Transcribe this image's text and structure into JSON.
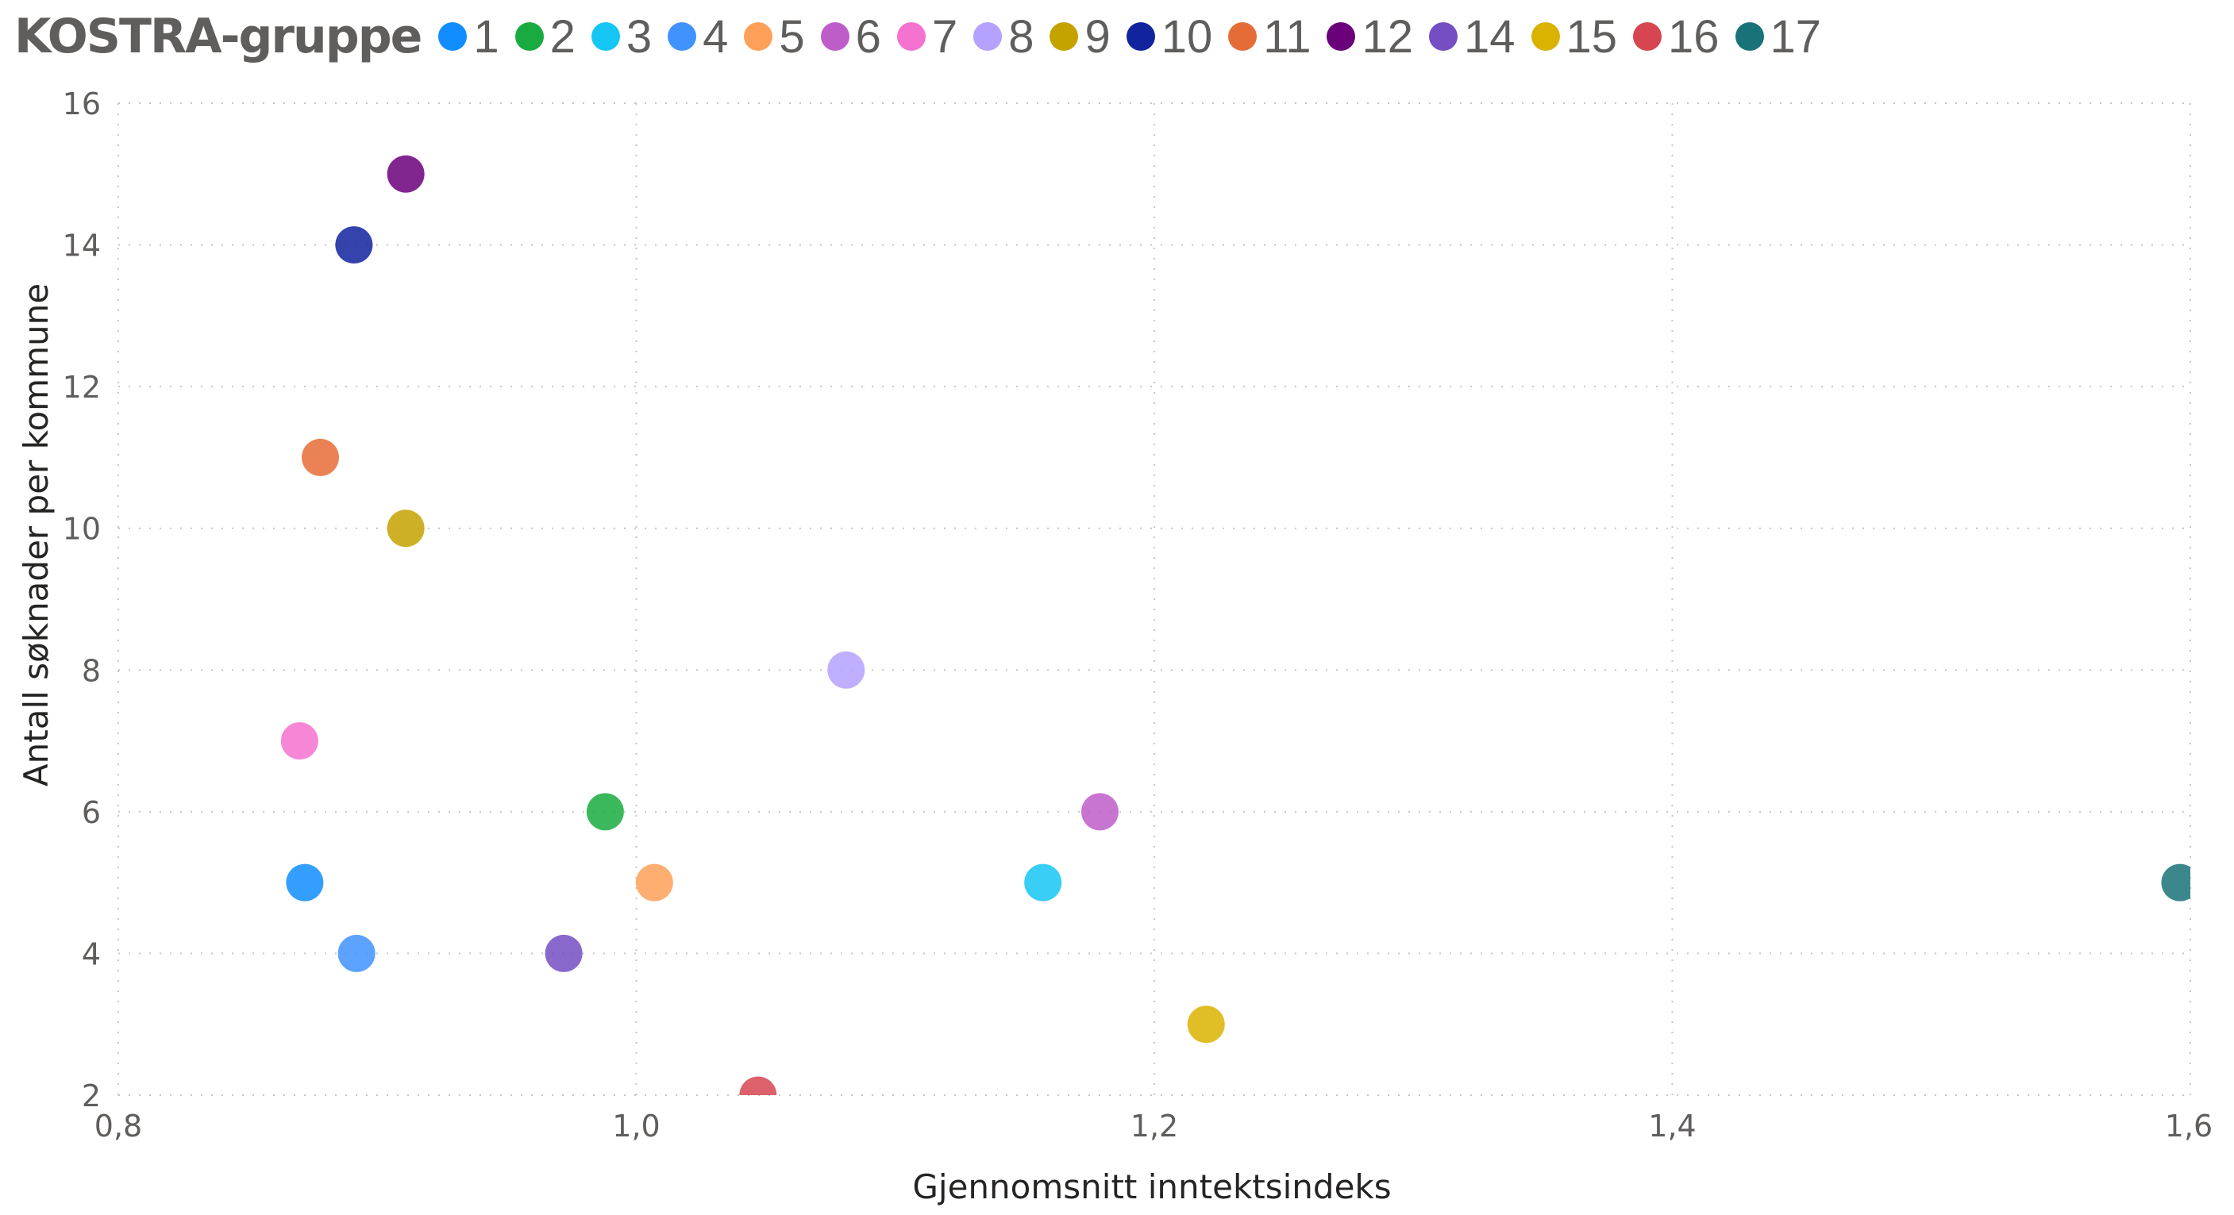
{
  "legend": {
    "title": "KOSTRA-gruppe",
    "items": [
      {
        "label": "1",
        "color": "#118DFF"
      },
      {
        "label": "2",
        "color": "#1AAB40"
      },
      {
        "label": "3",
        "color": "#15C6F4"
      },
      {
        "label": "4",
        "color": "#4092FF"
      },
      {
        "label": "5",
        "color": "#FFA058"
      },
      {
        "label": "6",
        "color": "#BE5DC9"
      },
      {
        "label": "7",
        "color": "#F472D0"
      },
      {
        "label": "8",
        "color": "#B5A1FF"
      },
      {
        "label": "9",
        "color": "#C4A200"
      },
      {
        "label": "10",
        "color": "#12239E"
      },
      {
        "label": "11",
        "color": "#E66C37"
      },
      {
        "label": "12",
        "color": "#6B007B"
      },
      {
        "label": "14",
        "color": "#744EC2"
      },
      {
        "label": "15",
        "color": "#D9B300"
      },
      {
        "label": "16",
        "color": "#D64550"
      },
      {
        "label": "17",
        "color": "#197278"
      }
    ]
  },
  "chart_data": {
    "type": "scatter",
    "title": "",
    "legend_title": "KOSTRA-gruppe",
    "legend_position": "top",
    "xlabel": "Gjennomsnitt inntektsindeks",
    "ylabel": "Antall søknader per kommune",
    "xlim": [
      0.8,
      1.6
    ],
    "ylim": [
      2,
      16
    ],
    "x_ticks": [
      "0,8",
      "1,0",
      "1,2",
      "1,4",
      "1,6"
    ],
    "y_ticks": [
      "2",
      "4",
      "6",
      "8",
      "10",
      "12",
      "14",
      "16"
    ],
    "grid": true,
    "series": [
      {
        "name": "1",
        "x": 0.872,
        "y": 5,
        "color": "#118DFF"
      },
      {
        "name": "2",
        "x": 0.988,
        "y": 6,
        "color": "#1AAB40"
      },
      {
        "name": "3",
        "x": 1.157,
        "y": 5,
        "color": "#15C6F4"
      },
      {
        "name": "4",
        "x": 0.892,
        "y": 4,
        "color": "#4092FF"
      },
      {
        "name": "5",
        "x": 1.007,
        "y": 5,
        "color": "#FFA058"
      },
      {
        "name": "6",
        "x": 1.179,
        "y": 6,
        "color": "#BE5DC9"
      },
      {
        "name": "7",
        "x": 0.87,
        "y": 7,
        "color": "#F472D0"
      },
      {
        "name": "8",
        "x": 1.081,
        "y": 8,
        "color": "#B5A1FF"
      },
      {
        "name": "9",
        "x": 0.911,
        "y": 10,
        "color": "#C4A200"
      },
      {
        "name": "10",
        "x": 0.891,
        "y": 14,
        "color": "#12239E"
      },
      {
        "name": "11",
        "x": 0.878,
        "y": 11,
        "color": "#E66C37"
      },
      {
        "name": "12",
        "x": 0.911,
        "y": 15,
        "color": "#6B007B"
      },
      {
        "name": "14",
        "x": 0.972,
        "y": 4,
        "color": "#744EC2"
      },
      {
        "name": "15",
        "x": 1.22,
        "y": 3,
        "color": "#D9B300"
      },
      {
        "name": "16",
        "x": 1.047,
        "y": 2,
        "color": "#D64550"
      },
      {
        "name": "17",
        "x": 1.596,
        "y": 5,
        "color": "#197278"
      }
    ]
  }
}
